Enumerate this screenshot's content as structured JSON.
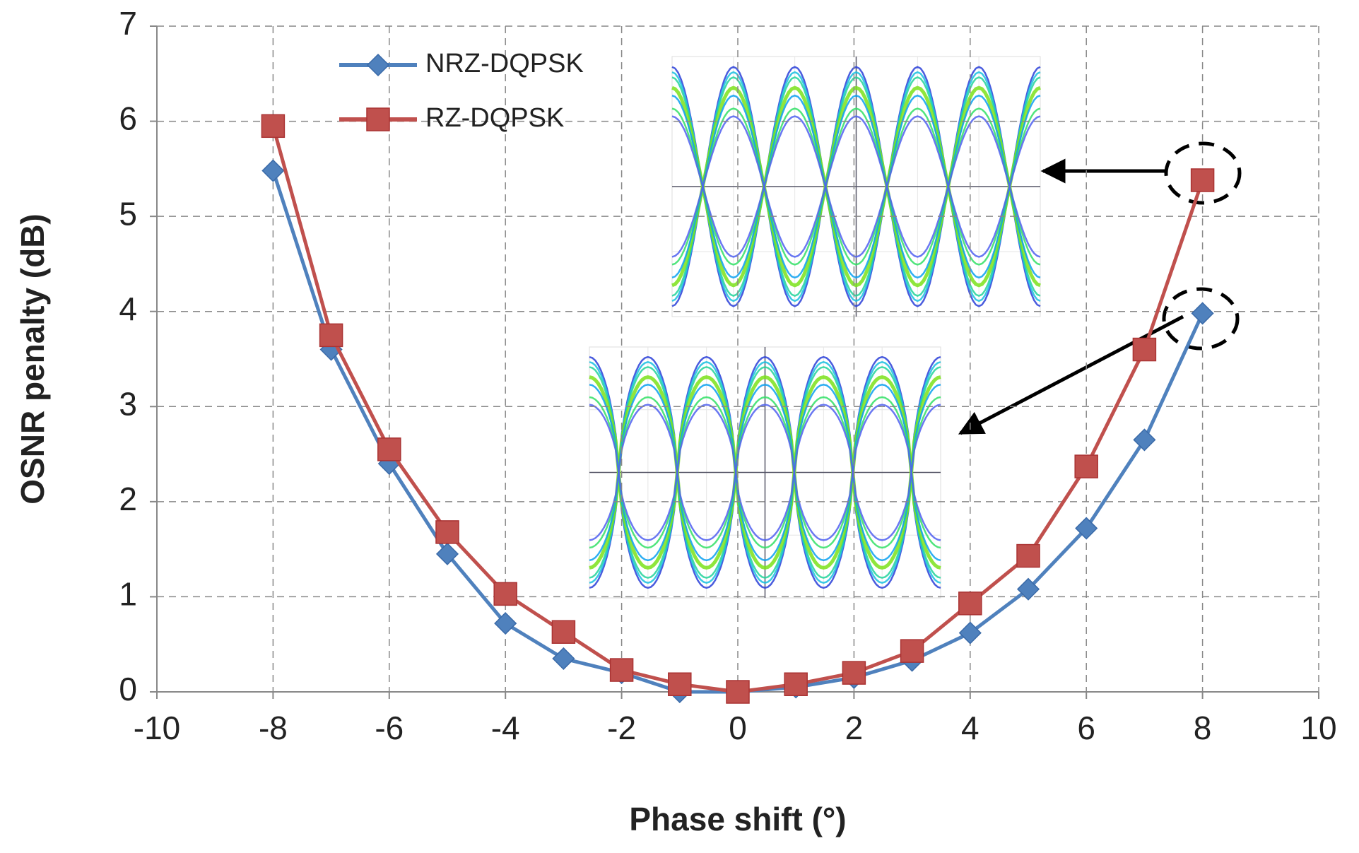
{
  "chart_data": {
    "type": "line",
    "x_label": "Phase shift (°)",
    "y_label": "OSNR penalty (dB)",
    "x": [
      -8,
      -7,
      -6,
      -5,
      -4,
      -3,
      -2,
      -1,
      0,
      1,
      2,
      3,
      4,
      5,
      6,
      7,
      8
    ],
    "series": [
      {
        "name": "NRZ-DQPSK",
        "color": "#4f81bd",
        "marker": "diamond",
        "values": [
          5.48,
          3.6,
          2.4,
          1.45,
          0.72,
          0.35,
          0.2,
          0,
          0,
          0.05,
          0.15,
          0.33,
          0.62,
          1.08,
          1.72,
          2.65,
          3.98
        ]
      },
      {
        "name": "RZ-DQPSK",
        "color": "#c0504d",
        "marker": "square",
        "values": [
          5.95,
          3.75,
          2.55,
          1.68,
          1.03,
          0.63,
          0.23,
          0.08,
          0,
          0.08,
          0.2,
          0.43,
          0.93,
          1.43,
          2.37,
          3.6,
          5.38
        ]
      }
    ],
    "xlim": [
      -10,
      10
    ],
    "xticks": [
      -10,
      -8,
      -6,
      -4,
      -2,
      0,
      2,
      4,
      6,
      8,
      10
    ],
    "ylim": [
      0,
      7
    ],
    "yticks": [
      0,
      1,
      2,
      3,
      4,
      5,
      6,
      7
    ],
    "grid": true,
    "legend": "upper-left"
  }
}
